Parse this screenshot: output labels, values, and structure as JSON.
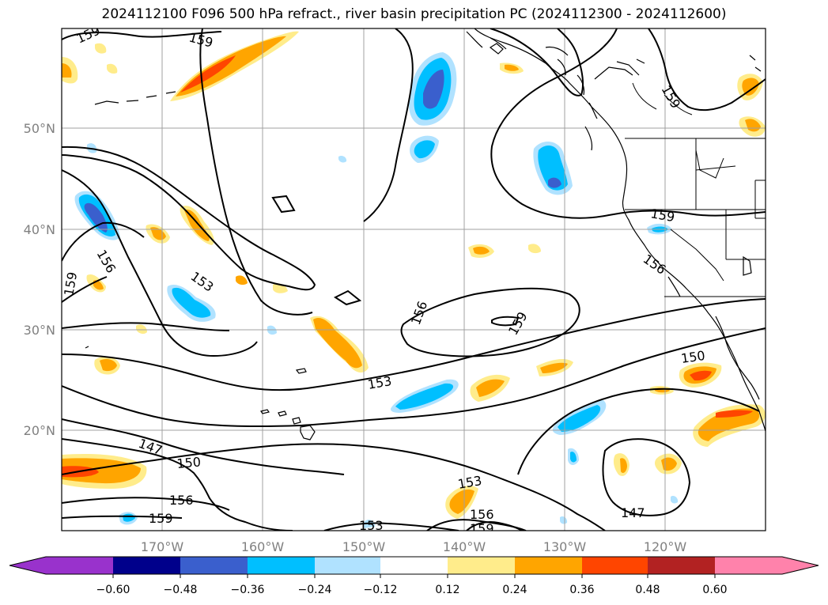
{
  "title": "2024112100 F096 500 hPa refract., river basin precipitation PC (2024112300 - 2024112600)",
  "map": {
    "lon_ticks": [
      "170°W",
      "160°W",
      "150°W",
      "140°W",
      "130°W",
      "120°W"
    ],
    "lat_ticks": [
      "50°N",
      "40°N",
      "30°N",
      "20°N"
    ],
    "grid": true
  },
  "contour_labels": [
    "159",
    "159",
    "156",
    "159",
    "153",
    "156",
    "159",
    "159",
    "156",
    "153",
    "150",
    "147",
    "150",
    "156",
    "159",
    "153",
    "156",
    "159",
    "153",
    "147",
    "159"
  ],
  "colorbar": {
    "ticks": [
      "−0.60",
      "−0.48",
      "−0.36",
      "−0.24",
      "−0.12",
      "0.12",
      "0.24",
      "0.36",
      "0.48",
      "0.60"
    ],
    "colors": [
      "#9932cc",
      "#00008b",
      "#3a5fcd",
      "#00bfff",
      "#b0e2ff",
      "#ffffff",
      "#ffec8b",
      "#ffa500",
      "#ff4500",
      "#b22222",
      "#ff82ab"
    ]
  }
}
